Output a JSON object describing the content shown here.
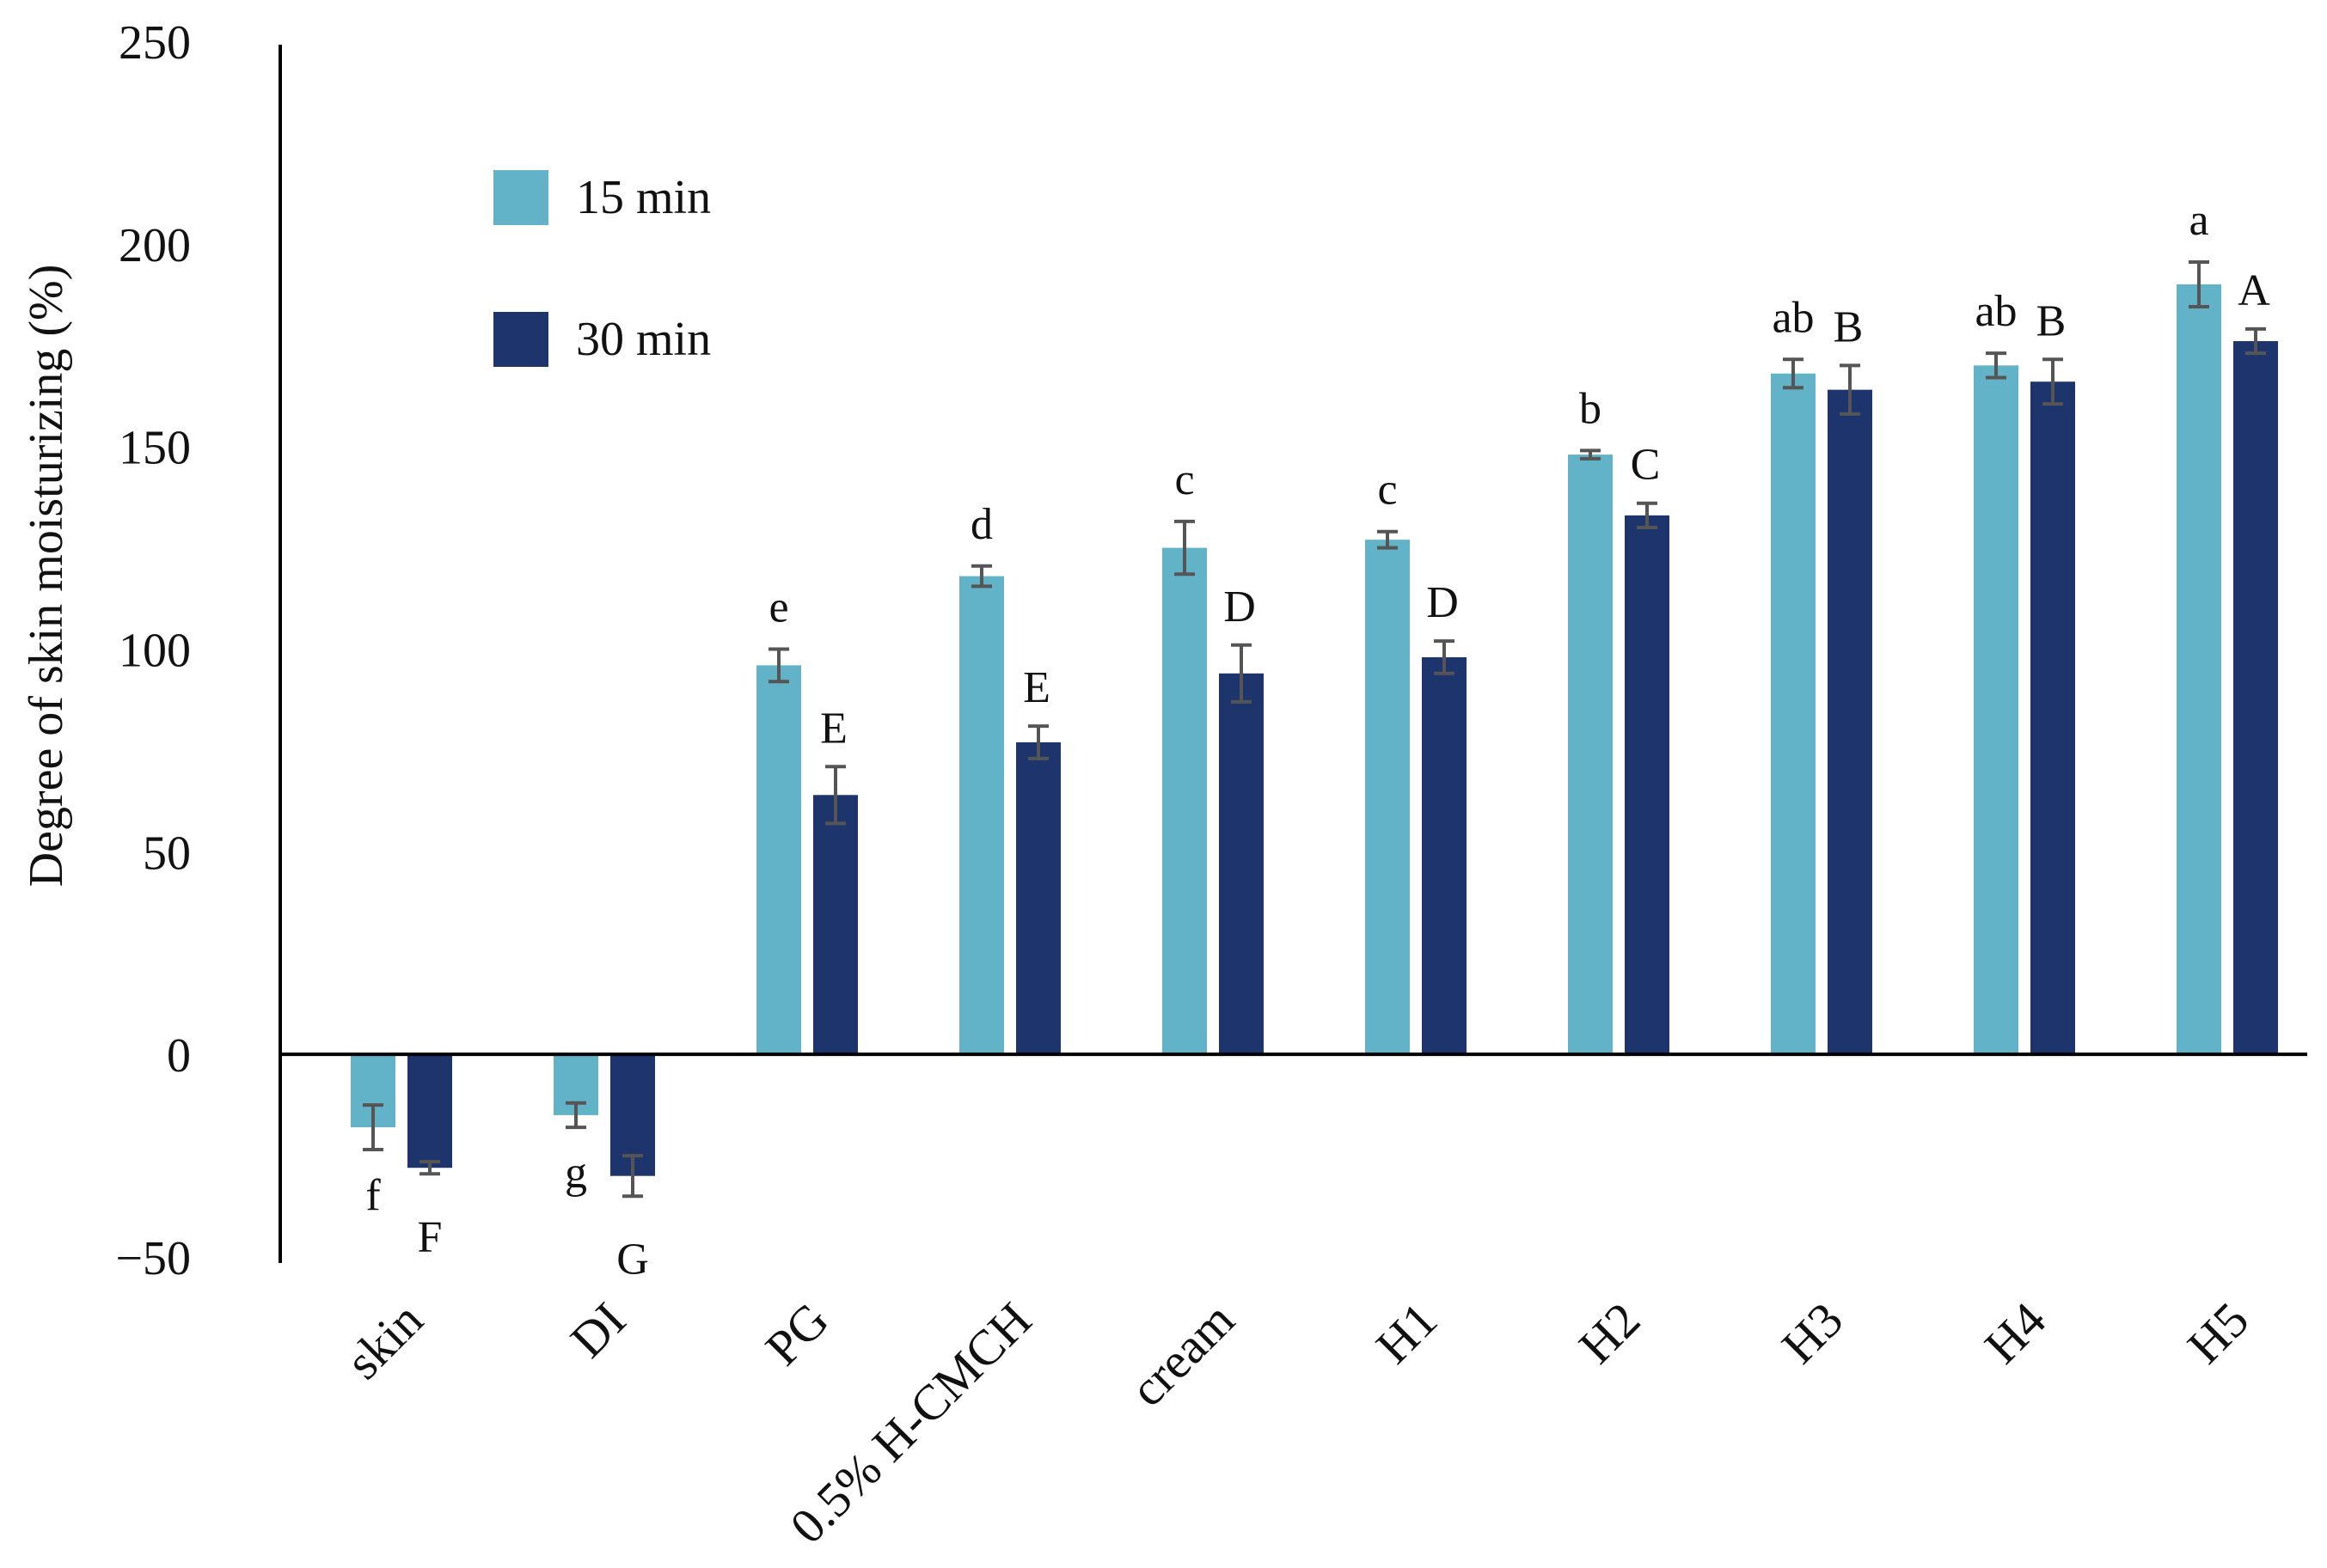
{
  "chart_data": {
    "type": "bar",
    "title": "",
    "xlabel": "",
    "ylabel": "Degree of skin moisturizing (%)",
    "ylim": [
      -50,
      250
    ],
    "yticks": [
      {
        "value": 250,
        "label": "250"
      },
      {
        "value": 200,
        "label": "200"
      },
      {
        "value": 150,
        "label": "150"
      },
      {
        "value": 100,
        "label": "100"
      },
      {
        "value": 50,
        "label": "50"
      },
      {
        "value": 0,
        "label": "0"
      },
      {
        "value": -50,
        "label": "−50"
      }
    ],
    "grid": false,
    "legend_position": "top-left",
    "categories": [
      "skin",
      "DI",
      "PG",
      "0.5% H-CMCH",
      "cream",
      "H1",
      "H2",
      "H3",
      "H4",
      "H5"
    ],
    "series": [
      {
        "name": "15 min",
        "color": "#62b3c7",
        "values": [
          -18,
          -15,
          96,
          118,
          125,
          127,
          148,
          168,
          170,
          190
        ],
        "errors": [
          5.5,
          3,
          4,
          2.5,
          6.5,
          2,
          1,
          3.5,
          3,
          5.5
        ],
        "significance": [
          "f",
          "g",
          "e",
          "d",
          "c",
          "c",
          "b",
          "ab",
          "ab",
          "a"
        ]
      },
      {
        "name": "30 min",
        "color": "#1d356c",
        "values": [
          -28,
          -30,
          64,
          77,
          94,
          98,
          133,
          164,
          166,
          176
        ],
        "errors": [
          1.5,
          5,
          7,
          4,
          7,
          4,
          3,
          6,
          5.5,
          3
        ],
        "significance": [
          "F",
          "G",
          "E",
          "E",
          "D",
          "D",
          "C",
          "B",
          "B",
          "A"
        ]
      }
    ]
  }
}
